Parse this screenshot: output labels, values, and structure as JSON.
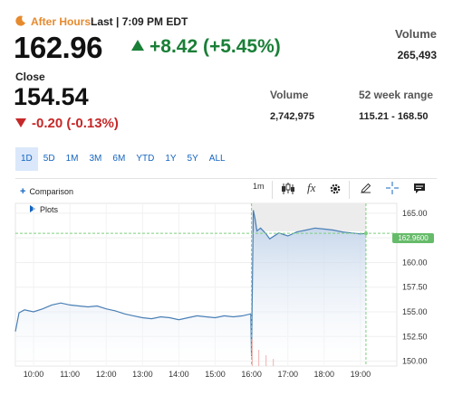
{
  "header": {
    "after_hours_label": "After Hours:",
    "after_hours_time": "Last | 7:09 PM EDT",
    "price": "162.96",
    "change": "+8.42 (+5.45%)",
    "volume_label": "Volume",
    "volume_value": "265,493"
  },
  "close": {
    "label": "Close",
    "price": "154.54",
    "change": "-0.20 (-0.13%)",
    "volume_label": "Volume",
    "volume_value": "2,742,975",
    "week_range_label": "52 week range",
    "week_range_value": "115.21 - 168.50"
  },
  "ranges": [
    "1D",
    "5D",
    "1M",
    "3M",
    "6M",
    "YTD",
    "1Y",
    "5Y",
    "ALL"
  ],
  "selected_range": "1D",
  "toolbar": {
    "comparison": "Comparison",
    "interval": "1m",
    "plots": "Plots",
    "fx_icon": "fx",
    "icons": [
      "candlestick-icon",
      "fx-icon",
      "gear-icon",
      "pencil-icon",
      "crosshair-icon",
      "comment-icon"
    ]
  },
  "colors": {
    "up": "#1a7f37",
    "down": "#c62828",
    "accent": "#1565c0",
    "after_hours": "#e68a2e",
    "line": "#4a7fb5",
    "price_tag": "#66bb6a"
  },
  "chart_data": {
    "type": "area",
    "xlabels": [
      "10:00",
      "11:00",
      "12:00",
      "13:00",
      "14:00",
      "15:00",
      "16:00",
      "17:00",
      "18:00",
      "19:00"
    ],
    "yticks": [
      "165.00",
      "162.50",
      "160.00",
      "157.50",
      "155.00",
      "152.50",
      "150.00"
    ],
    "ylim": [
      149.5,
      166.0
    ],
    "last_price_label": "162.9600",
    "series": [
      {
        "x": [
          9.5,
          9.6,
          9.75,
          10.0,
          10.25,
          10.5,
          10.75,
          11.0,
          11.25,
          11.5,
          11.75,
          12.0,
          12.25,
          12.5,
          12.75,
          13.0,
          13.25,
          13.5,
          13.75,
          14.0,
          14.25,
          14.5,
          14.75,
          15.0,
          15.25,
          15.5,
          15.75,
          15.98,
          16.0,
          16.05,
          16.1,
          16.15,
          16.25,
          16.4,
          16.5,
          16.75,
          17.0,
          17.25,
          17.5,
          17.75,
          18.0,
          18.25,
          18.5,
          18.75,
          19.0,
          19.15
        ],
        "y": [
          153.0,
          154.9,
          155.2,
          155.0,
          155.3,
          155.7,
          155.9,
          155.7,
          155.6,
          155.5,
          155.6,
          155.3,
          155.1,
          154.8,
          154.6,
          154.4,
          154.3,
          154.5,
          154.4,
          154.2,
          154.4,
          154.6,
          154.5,
          154.4,
          154.6,
          154.5,
          154.6,
          154.8,
          150.5,
          165.3,
          164.4,
          163.2,
          163.5,
          162.9,
          162.4,
          163.0,
          162.7,
          163.1,
          163.3,
          163.5,
          163.4,
          163.3,
          163.1,
          163.0,
          162.9,
          162.96
        ]
      }
    ]
  }
}
